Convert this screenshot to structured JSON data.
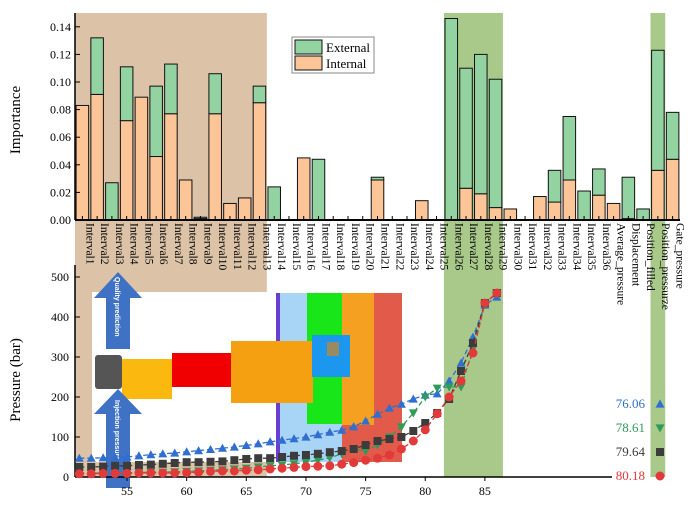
{
  "chart_data": [
    {
      "type": "bar",
      "stacked": true,
      "ylabel": "Importance",
      "ylim": [
        0,
        0.15
      ],
      "yticks": [
        "0.00",
        "0.02",
        "0.04",
        "0.06",
        "0.08",
        "0.10",
        "0.12",
        "0.14"
      ],
      "legend": {
        "placement": "top-center",
        "entries": [
          "External",
          "Internal"
        ]
      },
      "colors": {
        "External": "#93d3a2",
        "Internal": "#fcc597",
        "highlight_early": "#dcc3a8",
        "highlight_key": "#a9c98a"
      },
      "categories": [
        "Interval1",
        "Interval2",
        "Interval3",
        "Interval4",
        "Interval5",
        "Interval6",
        "Interval7",
        "Interval8",
        "Interval9",
        "Interval10",
        "Interval11",
        "Interval12",
        "Interval13",
        "Interval14",
        "Interval15",
        "Interval16",
        "Interval17",
        "Interval18",
        "Interval19",
        "Interval20",
        "Interval21",
        "Interval22",
        "Interval23",
        "Interval24",
        "Interval25",
        "Interval26",
        "Interval27",
        "Interval28",
        "Interval29",
        "Interval30",
        "Interval31",
        "Interval32",
        "Interval33",
        "Interval34",
        "Interval35",
        "Interval36",
        "Average_pressure",
        "Displacement",
        "Position_filled",
        "Position_pressurze",
        "Gate_pressure"
      ],
      "series": [
        {
          "name": "Internal",
          "values": [
            0.083,
            0.091,
            0,
            0.072,
            0.089,
            0.046,
            0.077,
            0.029,
            0.001,
            0.077,
            0.012,
            0.016,
            0.085,
            0,
            0,
            0.045,
            0,
            0,
            0,
            0,
            0.029,
            0,
            0,
            0.014,
            0,
            0,
            0.023,
            0.019,
            0.009,
            0.008,
            0,
            0.017,
            0.013,
            0.029,
            0,
            0.018,
            0.012,
            0.001,
            0,
            0.036,
            0.044
          ]
        },
        {
          "name": "External",
          "values": [
            0,
            0.041,
            0.027,
            0.039,
            0,
            0.051,
            0.036,
            0,
            0.001,
            0.029,
            0,
            0,
            0.012,
            0.024,
            0,
            0,
            0.044,
            0,
            0,
            0,
            0.002,
            0,
            0,
            0,
            0,
            0.146,
            0.087,
            0.101,
            0.093,
            0,
            0,
            0,
            0.023,
            0.046,
            0.021,
            0.019,
            0,
            0.03,
            0.008,
            0.087,
            0.034
          ]
        }
      ],
      "highlights": [
        {
          "from": "Interval1",
          "to": "Interval13",
          "color": "#dcc3a8"
        },
        {
          "from": "Interval26",
          "to": "Interval29",
          "color": "#a9c98a"
        },
        {
          "from": "Position_pressurze",
          "to": "Position_pressurze",
          "color": "#a9c98a"
        }
      ]
    },
    {
      "type": "line",
      "ylabel": "Pressure (bar)",
      "xlabel": "",
      "xlim": [
        51,
        87
      ],
      "ylim": [
        0,
        500
      ],
      "xticks": [
        "55",
        "60",
        "65",
        "70",
        "75",
        "80",
        "85"
      ],
      "yticks": [
        "0",
        "100",
        "200",
        "300",
        "400",
        "500"
      ],
      "x": [
        51,
        52,
        53,
        54,
        55,
        56,
        57,
        58,
        59,
        60,
        61,
        62,
        63,
        64,
        65,
        66,
        67,
        68,
        69,
        70,
        71,
        72,
        73,
        74,
        75,
        76,
        77,
        78,
        79,
        80,
        81,
        82,
        83,
        84,
        85,
        86
      ],
      "series": [
        {
          "name": "76.06",
          "color": "#2f6fd0",
          "marker": "triangle-up",
          "values": [
            47,
            47,
            48,
            49,
            50,
            53,
            56,
            58,
            60,
            63,
            66,
            69,
            72,
            75,
            79,
            83,
            88,
            92,
            96,
            100,
            106,
            112,
            117,
            126,
            140,
            157,
            172,
            182,
            195,
            205,
            208,
            240,
            285,
            350,
            430,
            450
          ]
        },
        {
          "name": "78.61",
          "color": "#2f9a5a",
          "marker": "triangle-down",
          "values": [
            10,
            10,
            10,
            10,
            11,
            11,
            12,
            12,
            13,
            14,
            15,
            17,
            18,
            20,
            22,
            25,
            28,
            30,
            33,
            37,
            42,
            48,
            58,
            70,
            65,
            80,
            100,
            125,
            160,
            200,
            222,
            225,
            225,
            320,
            432,
            460
          ]
        },
        {
          "name": "79.64",
          "color": "#3c3c3c",
          "marker": "square",
          "values": [
            25,
            25,
            26,
            28,
            28,
            30,
            31,
            33,
            35,
            37,
            37,
            38,
            39,
            42,
            45,
            47,
            47,
            50,
            53,
            55,
            58,
            62,
            65,
            70,
            80,
            90,
            95,
            100,
            115,
            135,
            160,
            195,
            265,
            335,
            435,
            460
          ]
        },
        {
          "name": "80.18",
          "color": "#e23a3a",
          "marker": "circle",
          "values": [
            8,
            8,
            9,
            9,
            9,
            10,
            10,
            10,
            10,
            11,
            12,
            14,
            15,
            15,
            17,
            18,
            20,
            22,
            24,
            26,
            27,
            28,
            32,
            36,
            42,
            47,
            55,
            70,
            90,
            118,
            158,
            200,
            240,
            310,
            435,
            460
          ]
        }
      ],
      "inset_labels": {
        "up_arrow": "Quality prediction",
        "down_arrow": "Injection pressure"
      }
    }
  ]
}
